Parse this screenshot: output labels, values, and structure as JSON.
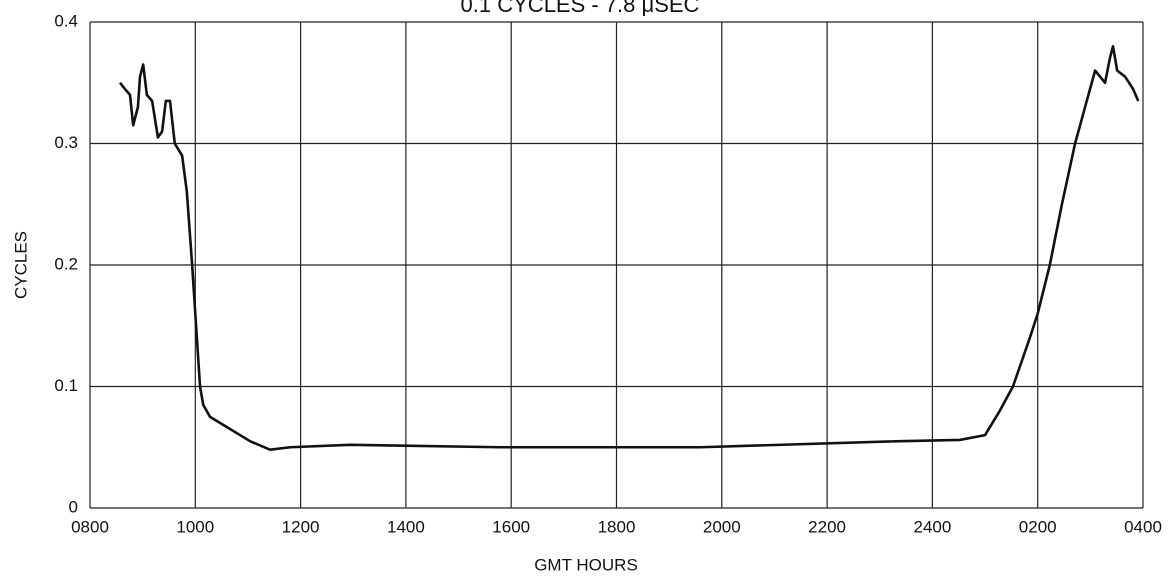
{
  "chart_data": {
    "type": "line",
    "title": "0.1 CYCLES - 7.8 μSEC",
    "x_label": "GMT HOURS",
    "y_label": "CYCLES",
    "x": [
      8.57,
      8.66,
      8.76,
      8.82,
      8.91,
      8.95,
      9.01,
      9.08,
      9.18,
      9.29,
      9.37,
      9.44,
      9.52,
      9.61,
      9.75,
      9.84,
      9.94,
      10.03,
      10.09,
      10.15,
      10.28,
      10.66,
      11.04,
      11.42,
      11.8,
      12.94,
      15.79,
      19.59,
      23.38,
      24.52,
      25.0,
      25.28,
      25.53,
      25.85,
      26.0,
      26.23,
      26.46,
      26.71,
      26.9,
      27.09,
      27.28,
      27.37,
      27.43,
      27.51,
      27.66,
      27.81,
      27.91
    ],
    "series": [
      {
        "name": "CYCLES",
        "color": "#111111",
        "values": [
          0.35,
          0.345,
          0.34,
          0.315,
          0.33,
          0.355,
          0.365,
          0.34,
          0.335,
          0.305,
          0.31,
          0.335,
          0.335,
          0.3,
          0.29,
          0.26,
          0.2,
          0.14,
          0.1,
          0.085,
          0.075,
          0.065,
          0.055,
          0.048,
          0.05,
          0.052,
          0.05,
          0.05,
          0.055,
          0.056,
          0.06,
          0.08,
          0.1,
          0.14,
          0.16,
          0.2,
          0.25,
          0.3,
          0.33,
          0.36,
          0.35,
          0.37,
          0.38,
          0.36,
          0.355,
          0.345,
          0.335
        ]
      }
    ],
    "xlim": [
      8,
      28
    ],
    "xticks": [
      {
        "value": 8,
        "label": "0800"
      },
      {
        "value": 10,
        "label": "1000"
      },
      {
        "value": 12,
        "label": "1200"
      },
      {
        "value": 14,
        "label": "1400"
      },
      {
        "value": 16,
        "label": "1600"
      },
      {
        "value": 18,
        "label": "1800"
      },
      {
        "value": 20,
        "label": "2000"
      },
      {
        "value": 22,
        "label": "2200"
      },
      {
        "value": 24,
        "label": "2400"
      },
      {
        "value": 26,
        "label": "0200"
      },
      {
        "value": 28,
        "label": "0400"
      }
    ],
    "ylim": [
      0,
      0.4
    ],
    "yticks": [
      0,
      0.1,
      0.2,
      0.3,
      0.4
    ],
    "grid": true
  }
}
